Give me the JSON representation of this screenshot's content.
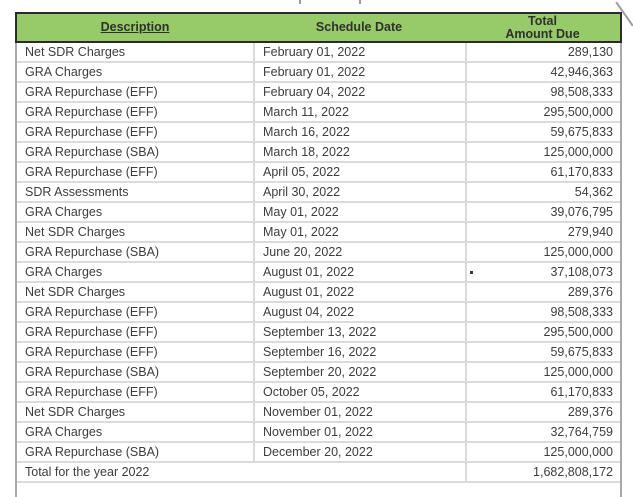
{
  "colors": {
    "header_green": "#97ca68",
    "header_text": "#303030",
    "body_text": "#3d3d3d",
    "dark_border": "#2b2b2b",
    "light_line": "#dbdbdb",
    "side_border": "#a8a8a8",
    "background": "#ffffff"
  },
  "table": {
    "columns": {
      "description": "Description",
      "schedule_date": "Schedule Date",
      "total_line1": "Total",
      "total_line2": "Amount Due"
    },
    "rows": [
      {
        "description": "Net SDR Charges",
        "schedule_date": "February 01, 2022",
        "amount": "289,130"
      },
      {
        "description": "GRA Charges",
        "schedule_date": "February 01, 2022",
        "amount": "42,946,363"
      },
      {
        "description": "GRA Repurchase (EFF)",
        "schedule_date": "February 04, 2022",
        "amount": "98,508,333"
      },
      {
        "description": "GRA Repurchase (EFF)",
        "schedule_date": "March 11, 2022",
        "amount": "295,500,000"
      },
      {
        "description": "GRA Repurchase (EFF)",
        "schedule_date": "March 16, 2022",
        "amount": "59,675,833"
      },
      {
        "description": "GRA Repurchase (SBA)",
        "schedule_date": "March 18, 2022",
        "amount": "125,000,000"
      },
      {
        "description": "GRA Repurchase (EFF)",
        "schedule_date": "April 05, 2022",
        "amount": "61,170,833"
      },
      {
        "description": "SDR Assessments",
        "schedule_date": "April 30, 2022",
        "amount": "54,362"
      },
      {
        "description": "GRA Charges",
        "schedule_date": "May 01, 2022",
        "amount": "39,076,795"
      },
      {
        "description": "Net SDR Charges",
        "schedule_date": "May 01, 2022",
        "amount": "279,940"
      },
      {
        "description": "GRA Repurchase (SBA)",
        "schedule_date": "June 20, 2022",
        "amount": "125,000,000"
      },
      {
        "description": "GRA Charges",
        "schedule_date": "August 01, 2022",
        "amount": "37,108,073",
        "stray_dot": true
      },
      {
        "description": "Net SDR Charges",
        "schedule_date": "August 01, 2022",
        "amount": "289,376"
      },
      {
        "description": "GRA Repurchase (EFF)",
        "schedule_date": "August 04, 2022",
        "amount": "98,508,333"
      },
      {
        "description": "GRA Repurchase (EFF)",
        "schedule_date": "September 13, 2022",
        "amount": "295,500,000"
      },
      {
        "description": "GRA Repurchase (EFF)",
        "schedule_date": "September 16, 2022",
        "amount": "59,675,833"
      },
      {
        "description": "GRA Repurchase (SBA)",
        "schedule_date": "September 20, 2022",
        "amount": "125,000,000"
      },
      {
        "description": "GRA Repurchase (EFF)",
        "schedule_date": "October 05, 2022",
        "amount": "61,170,833"
      },
      {
        "description": "Net SDR Charges",
        "schedule_date": "November 01, 2022",
        "amount": "289,376"
      },
      {
        "description": "GRA Charges",
        "schedule_date": "November 01, 2022",
        "amount": "32,764,759"
      },
      {
        "description": "GRA Repurchase (SBA)",
        "schedule_date": "December 20, 2022",
        "amount": "125,000,000"
      }
    ],
    "total_row": {
      "label": "Total for the year 2022",
      "amount": "1,682,808,172"
    }
  }
}
